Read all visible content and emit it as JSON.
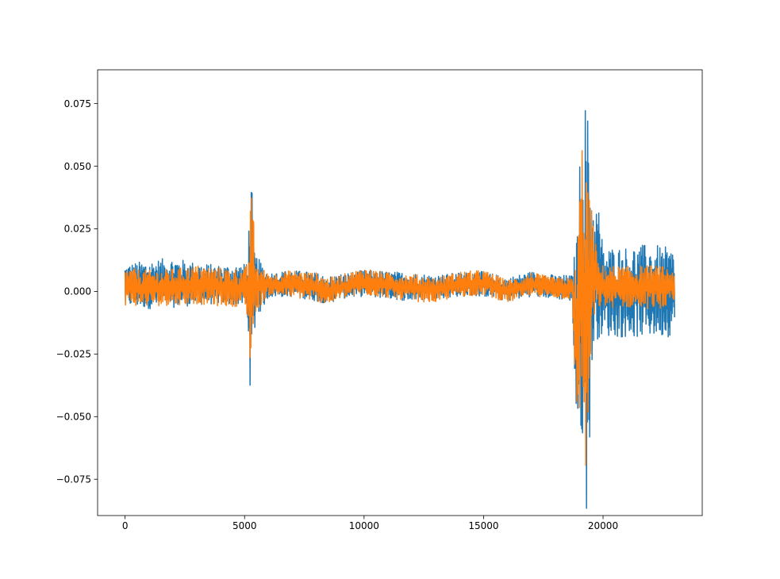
{
  "chart_data": {
    "type": "line",
    "title": "",
    "xlabel": "",
    "ylabel": "",
    "xlim": [
      -1150,
      24150
    ],
    "ylim": [
      -0.0895,
      0.0885
    ],
    "x_ticks": [
      0,
      5000,
      10000,
      15000,
      20000
    ],
    "x_tick_labels": [
      "0",
      "5000",
      "10000",
      "15000",
      "20000"
    ],
    "y_ticks": [
      -0.075,
      -0.05,
      -0.025,
      0.0,
      0.025,
      0.05,
      0.075
    ],
    "y_tick_labels": [
      "−0.075",
      "−0.050",
      "−0.025",
      "0.000",
      "0.025",
      "0.050",
      "0.075"
    ],
    "grid": false,
    "legend": "none",
    "x_range": [
      0,
      23000
    ],
    "series": [
      {
        "color": "#1f77b4",
        "envelope_x": [
          0,
          1000,
          2000,
          3000,
          4000,
          5000,
          5150,
          5250,
          5350,
          5450,
          6000,
          7000,
          8000,
          8500,
          9000,
          10000,
          11000,
          12000,
          13000,
          14000,
          15000,
          16000,
          17000,
          18000,
          18700,
          18900,
          19100,
          19300,
          19400,
          19600,
          19800,
          20000,
          21000,
          22000,
          23000
        ],
        "envelope_upper": [
          0.011,
          0.0125,
          0.0135,
          0.0115,
          0.0105,
          0.011,
          0.0165,
          0.0535,
          0.032,
          0.015,
          0.0075,
          0.0085,
          0.0075,
          0.006,
          0.007,
          0.0085,
          0.008,
          0.0075,
          0.0065,
          0.0075,
          0.008,
          0.0055,
          0.008,
          0.0065,
          0.0065,
          0.0235,
          0.0695,
          0.0805,
          0.065,
          0.0355,
          0.036,
          0.018,
          0.018,
          0.019,
          0.017
        ],
        "envelope_lower": [
          -0.006,
          -0.007,
          -0.0065,
          -0.0055,
          -0.005,
          -0.006,
          -0.015,
          -0.0435,
          -0.033,
          -0.012,
          -0.0025,
          -0.002,
          -0.004,
          -0.005,
          -0.003,
          -0.002,
          -0.003,
          -0.004,
          -0.003,
          -0.002,
          -0.002,
          -0.004,
          -0.002,
          -0.003,
          -0.004,
          -0.063,
          -0.0575,
          -0.0885,
          -0.07,
          -0.0225,
          -0.0185,
          -0.018,
          -0.0185,
          -0.0185,
          -0.018
        ]
      },
      {
        "color": "#ff7f0e",
        "envelope_x": [
          0,
          1000,
          2000,
          3000,
          4000,
          5000,
          5150,
          5250,
          5350,
          5450,
          6000,
          7000,
          8000,
          8500,
          9000,
          10000,
          11000,
          12000,
          13000,
          14000,
          15000,
          16000,
          17000,
          18000,
          18700,
          18900,
          19100,
          19300,
          19400,
          19600,
          19800,
          20000,
          21000,
          22000,
          23000
        ],
        "envelope_upper": [
          0.0095,
          0.0085,
          0.009,
          0.0105,
          0.0095,
          0.009,
          0.012,
          0.039,
          0.036,
          0.012,
          0.007,
          0.0085,
          0.0075,
          0.0055,
          0.0065,
          0.0095,
          0.0075,
          0.007,
          0.0055,
          0.008,
          0.0085,
          0.0045,
          0.0075,
          0.0055,
          0.0055,
          0.0125,
          0.0625,
          0.0545,
          0.039,
          0.029,
          0.0105,
          0.0105,
          0.01,
          0.0105,
          0.0095
        ],
        "envelope_lower": [
          -0.0055,
          -0.006,
          -0.0055,
          -0.005,
          -0.006,
          -0.006,
          -0.012,
          -0.0345,
          -0.021,
          -0.0085,
          -0.0015,
          -0.0025,
          -0.004,
          -0.0055,
          -0.003,
          -0.0015,
          -0.0025,
          -0.004,
          -0.0045,
          -0.002,
          -0.0015,
          -0.0045,
          -0.002,
          -0.0025,
          -0.0035,
          -0.056,
          -0.045,
          -0.0805,
          -0.054,
          -0.0135,
          -0.0065,
          -0.0065,
          -0.0065,
          -0.007,
          -0.0065
        ]
      }
    ]
  }
}
